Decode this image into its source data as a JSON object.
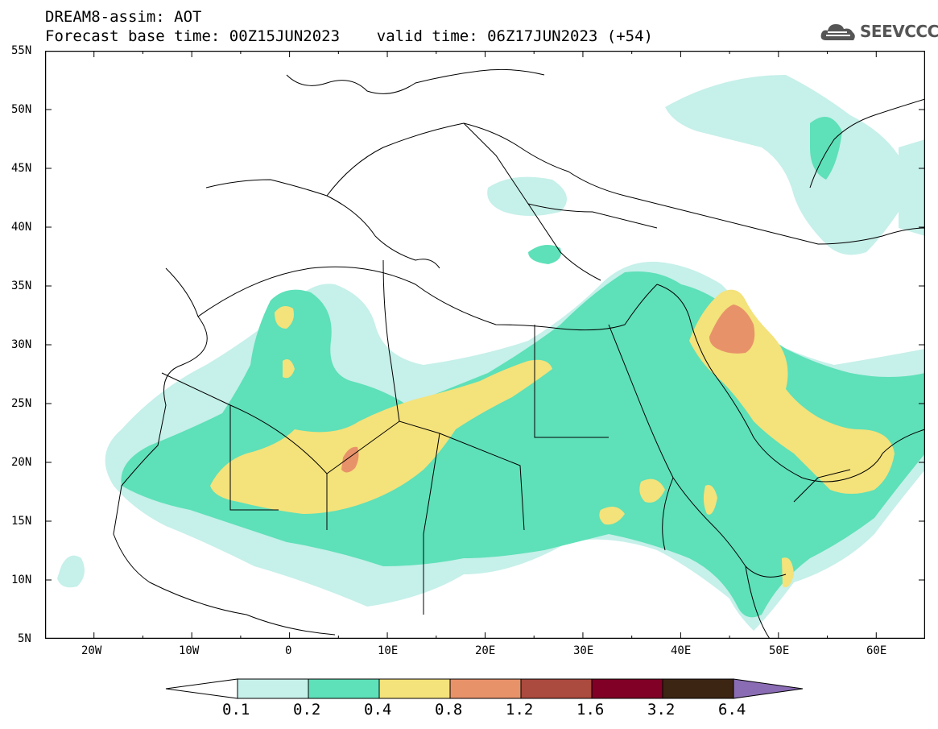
{
  "header": {
    "line1": "DREAM8-assim: AOT",
    "line2": "Forecast base time: 00Z15JUN2023    valid time: 06Z17JUN2023 (+54)"
  },
  "logo": {
    "text": "SEEVCCC",
    "icon": "cloud-icon"
  },
  "map": {
    "lon_range": [
      -25,
      65
    ],
    "lat_range": [
      5,
      55
    ],
    "lat_ticks": [
      "55N",
      "50N",
      "45N",
      "40N",
      "35N",
      "30N",
      "25N",
      "20N",
      "15N",
      "10N",
      "5N"
    ],
    "lon_ticks": [
      "20W",
      "10W",
      "0",
      "10E",
      "20E",
      "30E",
      "40E",
      "50E",
      "60E"
    ]
  },
  "colors": {
    "c01": "#c6f0ea",
    "c02": "#5ee0b8",
    "c04": "#f4e27a",
    "c08": "#e8926a",
    "c12": "#ab4a3e",
    "c16": "#800026",
    "c32": "#3d2514",
    "c64": "#8a6cb4",
    "border": "#000000",
    "background": "#ffffff"
  },
  "legend": {
    "labels": [
      "0.1",
      "0.2",
      "0.4",
      "0.8",
      "1.2",
      "1.6",
      "3.2",
      "6.4"
    ]
  }
}
